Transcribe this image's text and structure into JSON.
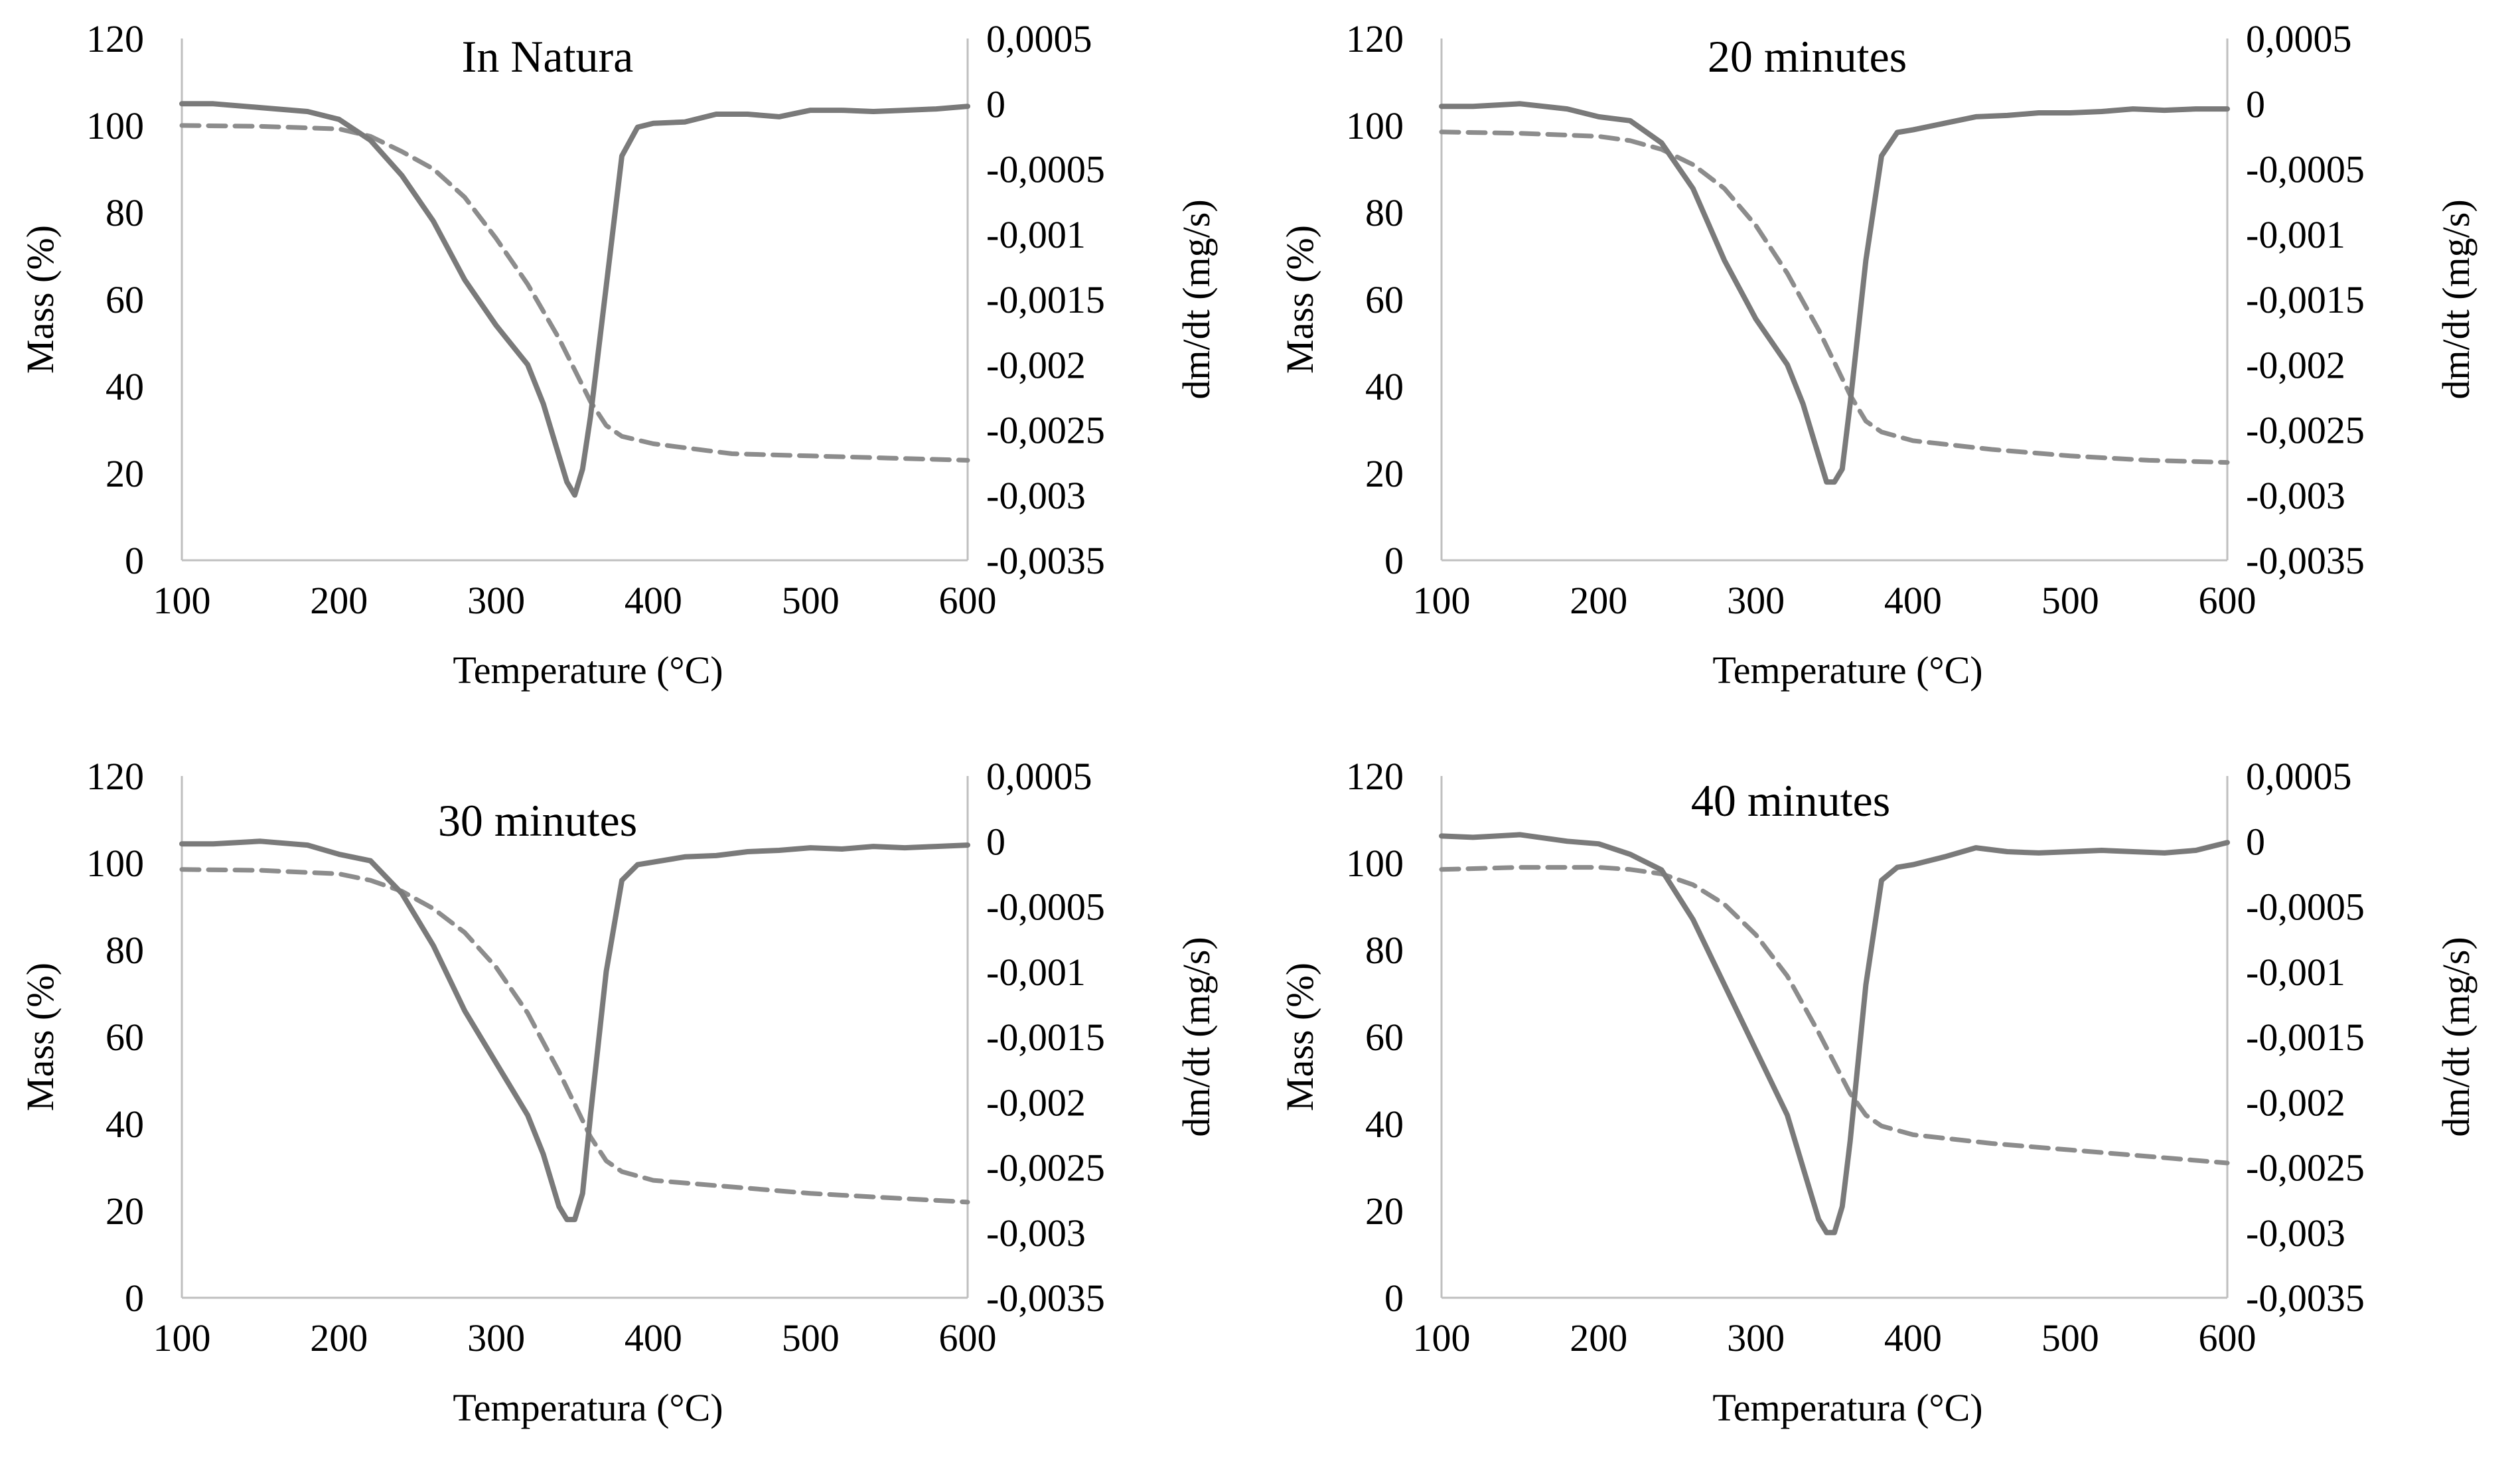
{
  "chart_data": [
    {
      "type": "line",
      "title": "In Natura",
      "xlabel": "Temperature (°C)",
      "ylabel": "Mass (%)",
      "y2label": "dm/dt (mg/s)",
      "xlim": [
        100,
        600
      ],
      "ylim": [
        0,
        120
      ],
      "y2lim": [
        -0.0035,
        0.0005
      ],
      "x_ticks": [
        "100",
        "200",
        "300",
        "400",
        "500",
        "600"
      ],
      "y_ticks": [
        "0",
        "20",
        "40",
        "60",
        "80",
        "100",
        "120"
      ],
      "y2_ticks": [
        "-0,0035",
        "-0,003",
        "-0,0025",
        "-0,002",
        "-0,0015",
        "-0,001",
        "-0,0005",
        "0",
        "0,0005"
      ],
      "grid": false,
      "colors": {
        "mass": "#8c8c8c",
        "dtg": "#7a7a7a",
        "axis": "#bfbfbf"
      },
      "series": [
        {
          "name": "Mass (%)",
          "axis": "left",
          "style": "dashed",
          "x": [
            100,
            150,
            200,
            220,
            240,
            260,
            280,
            300,
            320,
            340,
            360,
            370,
            380,
            400,
            450,
            500,
            550,
            600
          ],
          "y": [
            100,
            99.8,
            99.2,
            97.5,
            94,
            90,
            83.5,
            74,
            63.5,
            51,
            36.5,
            31,
            28.5,
            26.8,
            24.5,
            24,
            23.5,
            23
          ]
        },
        {
          "name": "dm/dt (mg/s)",
          "axis": "right",
          "style": "solid",
          "x": [
            100,
            120,
            150,
            180,
            200,
            220,
            240,
            260,
            280,
            300,
            320,
            330,
            340,
            345,
            350,
            355,
            360,
            370,
            380,
            390,
            400,
            420,
            440,
            460,
            480,
            500,
            520,
            540,
            560,
            580,
            600
          ],
          "y": [
            0.0,
            0.0,
            -3e-05,
            -6e-05,
            -0.00012,
            -0.00028,
            -0.00055,
            -0.0009,
            -0.00135,
            -0.0017,
            -0.002,
            -0.0023,
            -0.0027,
            -0.0029,
            -0.003,
            -0.0028,
            -0.0024,
            -0.0014,
            -0.0004,
            -0.00018,
            -0.00015,
            -0.00014,
            -8e-05,
            -8e-05,
            -0.0001,
            -5e-05,
            -5e-05,
            -6e-05,
            -5e-05,
            -4e-05,
            -2e-05
          ]
        }
      ]
    },
    {
      "type": "line",
      "title": "20 minutes",
      "xlabel": "Temperature (°C)",
      "ylabel": "Mass (%)",
      "y2label": "dm/dt (mg/s)",
      "xlim": [
        100,
        600
      ],
      "ylim": [
        0,
        120
      ],
      "y2lim": [
        -0.0035,
        0.0005
      ],
      "x_ticks": [
        "100",
        "200",
        "300",
        "400",
        "500",
        "600"
      ],
      "y_ticks": [
        "0",
        "20",
        "40",
        "60",
        "80",
        "100",
        "120"
      ],
      "y2_ticks": [
        "-0,0035",
        "-0,003",
        "-0,0025",
        "-0,002",
        "-0,0015",
        "-0,001",
        "-0,0005",
        "0",
        "0,0005"
      ],
      "grid": false,
      "colors": {
        "mass": "#8c8c8c",
        "dtg": "#7a7a7a",
        "axis": "#bfbfbf"
      },
      "series": [
        {
          "name": "Mass (%)",
          "axis": "left",
          "style": "dashed",
          "x": [
            100,
            150,
            200,
            220,
            240,
            260,
            280,
            300,
            320,
            340,
            360,
            370,
            380,
            400,
            450,
            500,
            550,
            600
          ],
          "y": [
            98.5,
            98.2,
            97.5,
            96.5,
            94.5,
            91,
            85.5,
            77,
            66,
            53,
            38,
            32,
            29.5,
            27.5,
            25.5,
            24,
            23,
            22.5
          ]
        },
        {
          "name": "dm/dt (mg/s)",
          "axis": "right",
          "style": "solid",
          "x": [
            100,
            120,
            150,
            180,
            200,
            220,
            240,
            260,
            280,
            300,
            320,
            330,
            340,
            345,
            350,
            355,
            360,
            370,
            380,
            390,
            400,
            420,
            440,
            460,
            480,
            500,
            520,
            540,
            560,
            580,
            600
          ],
          "y": [
            -2e-05,
            -2e-05,
            0.0,
            -4e-05,
            -0.0001,
            -0.00013,
            -0.0003,
            -0.00065,
            -0.0012,
            -0.00165,
            -0.002,
            -0.0023,
            -0.0027,
            -0.0029,
            -0.0029,
            -0.0028,
            -0.0023,
            -0.0012,
            -0.0004,
            -0.00022,
            -0.0002,
            -0.00015,
            -0.0001,
            -9e-05,
            -7e-05,
            -7e-05,
            -6e-05,
            -4e-05,
            -5e-05,
            -4e-05,
            -4e-05
          ]
        }
      ]
    },
    {
      "type": "line",
      "title": "30 minutes",
      "xlabel": "Temperatura (°C)",
      "ylabel": "Mass (%)",
      "y2label": "dm/dt (mg/s)",
      "xlim": [
        100,
        600
      ],
      "ylim": [
        0,
        120
      ],
      "y2lim": [
        -0.0035,
        0.0005
      ],
      "x_ticks": [
        "100",
        "200",
        "300",
        "400",
        "500",
        "600"
      ],
      "y_ticks": [
        "0",
        "20",
        "40",
        "60",
        "80",
        "100",
        "120"
      ],
      "y2_ticks": [
        "-0,0035",
        "-0,003",
        "-0,0025",
        "-0,002",
        "-0,0015",
        "-0,001",
        "-0,0005",
        "0",
        "0,0005"
      ],
      "grid": false,
      "colors": {
        "mass": "#8c8c8c",
        "dtg": "#7a7a7a",
        "axis": "#bfbfbf"
      },
      "series": [
        {
          "name": "Mass (%)",
          "axis": "left",
          "style": "dashed",
          "x": [
            100,
            150,
            200,
            220,
            240,
            260,
            280,
            300,
            320,
            340,
            360,
            370,
            380,
            400,
            450,
            500,
            550,
            600
          ],
          "y": [
            98.5,
            98.3,
            97.5,
            96,
            93.5,
            89.5,
            84,
            76,
            65.5,
            52,
            37,
            31.5,
            29,
            27,
            25.5,
            24,
            23,
            22
          ]
        },
        {
          "name": "dm/dt (mg/s)",
          "axis": "right",
          "style": "solid",
          "x": [
            100,
            120,
            150,
            180,
            200,
            220,
            240,
            260,
            280,
            300,
            320,
            330,
            340,
            345,
            350,
            355,
            360,
            370,
            380,
            390,
            400,
            420,
            440,
            460,
            480,
            500,
            520,
            540,
            560,
            580,
            600
          ],
          "y": [
            -2e-05,
            -2e-05,
            0.0,
            -3e-05,
            -0.0001,
            -0.00015,
            -0.0004,
            -0.0008,
            -0.0013,
            -0.0017,
            -0.0021,
            -0.0024,
            -0.0028,
            -0.0029,
            -0.0029,
            -0.0027,
            -0.0021,
            -0.001,
            -0.0003,
            -0.00018,
            -0.00016,
            -0.00012,
            -0.00011,
            -8e-05,
            -7e-05,
            -5e-05,
            -6e-05,
            -4e-05,
            -5e-05,
            -4e-05,
            -3e-05
          ]
        }
      ]
    },
    {
      "type": "line",
      "title": "40 minutes",
      "xlabel": "Temperatura (°C)",
      "ylabel": "Mass (%)",
      "y2label": "dm/dt (mg/s)",
      "xlim": [
        100,
        600
      ],
      "ylim": [
        0,
        120
      ],
      "y2lim": [
        -0.0035,
        0.0005
      ],
      "x_ticks": [
        "100",
        "200",
        "300",
        "400",
        "500",
        "600"
      ],
      "y_ticks": [
        "0",
        "20",
        "40",
        "60",
        "80",
        "100",
        "120"
      ],
      "y2_ticks": [
        "-0,0035",
        "-0,003",
        "-0,0025",
        "-0,002",
        "-0,0015",
        "-0,001",
        "-0,0005",
        "0",
        "0,0005"
      ],
      "grid": false,
      "colors": {
        "mass": "#8c8c8c",
        "dtg": "#7a7a7a",
        "axis": "#bfbfbf"
      },
      "series": [
        {
          "name": "Mass (%)",
          "axis": "left",
          "style": "dashed",
          "x": [
            100,
            150,
            200,
            220,
            240,
            260,
            280,
            300,
            320,
            340,
            360,
            370,
            380,
            400,
            450,
            500,
            550,
            600
          ],
          "y": [
            98.5,
            99,
            99,
            98.5,
            97.5,
            95,
            90.5,
            83.5,
            74,
            61,
            47,
            42,
            39.5,
            37.5,
            35.5,
            34,
            32.5,
            31
          ]
        },
        {
          "name": "dm/dt (mg/s)",
          "axis": "right",
          "style": "solid",
          "x": [
            100,
            120,
            150,
            180,
            200,
            220,
            240,
            260,
            280,
            300,
            320,
            330,
            340,
            345,
            350,
            355,
            360,
            370,
            380,
            390,
            400,
            420,
            440,
            460,
            480,
            500,
            520,
            540,
            560,
            580,
            600
          ],
          "y": [
            4e-05,
            3e-05,
            5e-05,
            0.0,
            -2e-05,
            -0.0001,
            -0.00022,
            -0.0006,
            -0.0011,
            -0.0016,
            -0.0021,
            -0.0025,
            -0.0029,
            -0.003,
            -0.003,
            -0.0028,
            -0.0023,
            -0.0011,
            -0.0003,
            -0.0002,
            -0.00018,
            -0.00012,
            -5e-05,
            -8e-05,
            -9e-05,
            -8e-05,
            -7e-05,
            -8e-05,
            -9e-05,
            -7e-05,
            -1e-05
          ]
        }
      ]
    }
  ]
}
